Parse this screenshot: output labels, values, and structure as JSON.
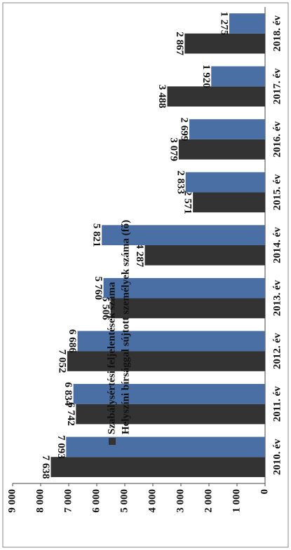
{
  "chart_data": {
    "type": "bar",
    "categories": [
      "2010. év",
      "2011. év",
      "2012. év",
      "2013. év",
      "2014. év",
      "2015. év",
      "2016. év",
      "2017. év",
      "2018. év"
    ],
    "series": [
      {
        "name": "Szabálysértési feljelentések száma",
        "color": "#333333",
        "values": [
          7638,
          6742,
          7052,
          5506,
          4287,
          2571,
          3079,
          3488,
          2867
        ],
        "value_labels": [
          "7 638",
          "6 742",
          "7 052",
          "5 506",
          "4 287",
          "2 571",
          "3 079",
          "3 488",
          "2 867"
        ]
      },
      {
        "name": "Helyszíni bírsággal sújtott személyek száma (fő)",
        "color": "#4a6fa5",
        "values": [
          7093,
          6834,
          6686,
          5760,
          5821,
          2833,
          2699,
          1920,
          1275
        ],
        "value_labels": [
          "7 093",
          "6 834",
          "6 686",
          "5 760",
          "5 821",
          "2 833",
          "2 699",
          "1 920",
          "1 275"
        ]
      }
    ],
    "ylim": [
      0,
      9000
    ],
    "yticks": [
      0,
      {
        "value": 1000,
        "label": "1 000"
      },
      {
        "value": 2000,
        "label": "2 000"
      },
      {
        "value": 3000,
        "label": "3 000"
      },
      {
        "value": 4000,
        "label": "4 000"
      },
      {
        "value": 5000,
        "label": "5 000"
      },
      {
        "value": 6000,
        "label": "6 000"
      },
      {
        "value": 7000,
        "label": "7 000"
      },
      {
        "value": 8000,
        "label": "8 000"
      },
      {
        "value": 9000,
        "label": "9 000"
      }
    ],
    "legend": "top-center"
  }
}
